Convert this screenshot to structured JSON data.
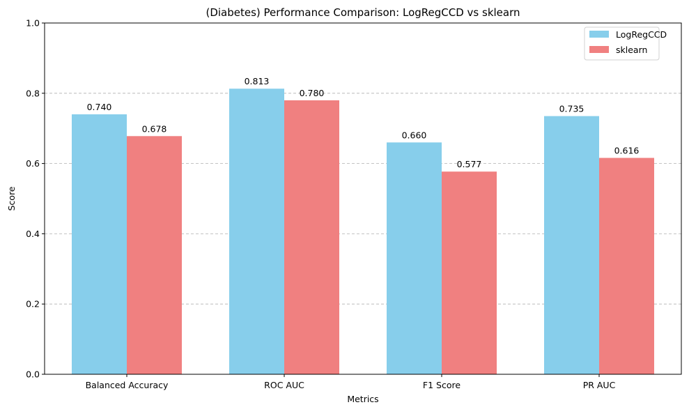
{
  "chart_data": {
    "type": "bar",
    "title": "(Diabetes) Performance Comparison: LogRegCCD vs sklearn",
    "xlabel": "Metrics",
    "ylabel": "Score",
    "ylim": [
      0,
      1.0
    ],
    "yticks": [
      "0.0",
      "0.2",
      "0.4",
      "0.6",
      "0.8",
      "1.0"
    ],
    "grid": "y-dashed",
    "legend_position": "top-right",
    "categories": [
      "Balanced Accuracy",
      "ROC AUC",
      "F1 Score",
      "PR AUC"
    ],
    "series": [
      {
        "name": "LogRegCCD",
        "color": "#87ceeb",
        "values": [
          0.74,
          0.813,
          0.66,
          0.735
        ],
        "labels": [
          "0.740",
          "0.813",
          "0.660",
          "0.735"
        ]
      },
      {
        "name": "sklearn",
        "color": "#f08080",
        "values": [
          0.678,
          0.78,
          0.577,
          0.616
        ],
        "labels": [
          "0.678",
          "0.780",
          "0.577",
          "0.616"
        ]
      }
    ]
  }
}
